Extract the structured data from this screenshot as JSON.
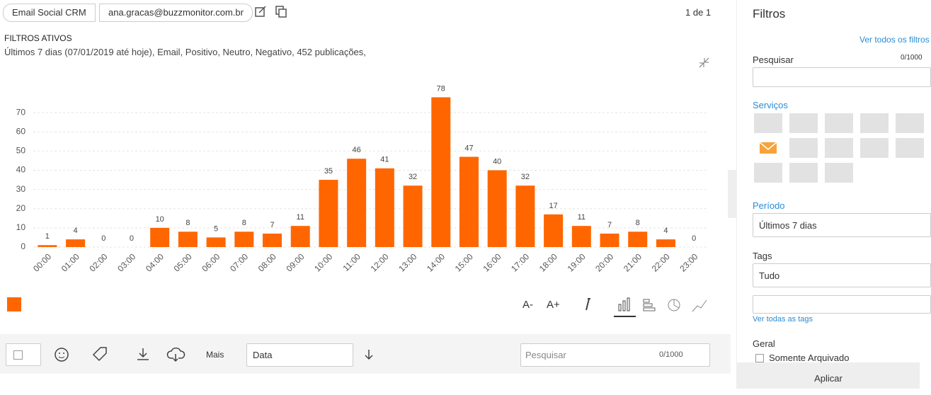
{
  "toolbar": {
    "tabs": [
      "Email Social CRM",
      "ana.gracas@buzzmonitor.com.br"
    ],
    "pagination": "1 de 1"
  },
  "filters": {
    "heading": "FILTROS ATIVOS",
    "summary": "Últimos 7 dias (07/01/2019 até hoje), Email, Positivo, Neutro, Negativo, 452 publicações,"
  },
  "chart_data": {
    "type": "bar",
    "categories": [
      "00:00",
      "01:00",
      "02:00",
      "03:00",
      "04:00",
      "05:00",
      "06:00",
      "07:00",
      "08:00",
      "09:00",
      "10:00",
      "11:00",
      "12:00",
      "13:00",
      "14:00",
      "15:00",
      "16:00",
      "17:00",
      "18:00",
      "19:00",
      "20:00",
      "21:00",
      "22:00",
      "23:00"
    ],
    "values": [
      1,
      4,
      0,
      0,
      10,
      8,
      5,
      8,
      7,
      11,
      35,
      46,
      41,
      32,
      78,
      47,
      40,
      32,
      17,
      11,
      7,
      8,
      4,
      0
    ],
    "color": "#ff6600",
    "ylim": [
      0,
      80
    ],
    "yticks": [
      0,
      10,
      20,
      30,
      40,
      50,
      60,
      70
    ],
    "grid": true
  },
  "chart_tools": [
    "A-",
    "A+"
  ],
  "bottom_bar": {
    "more": "Mais",
    "sort": "Data",
    "search_placeholder": "Pesquisar",
    "counter": "0/1000"
  },
  "sidebar": {
    "title": "Filtros",
    "see_all": "Ver todos os filtros",
    "search_label": "Pesquisar",
    "search_counter": "0/1000",
    "services": "Serviços",
    "period_label": "Período",
    "period_value": "Últimos 7 dias",
    "tags_label": "Tags",
    "tags_value": "Tudo",
    "see_all_tags": "Ver todas as tags",
    "general": "Geral",
    "archived_only": "Somente Arquivado",
    "apply": "Aplicar"
  }
}
